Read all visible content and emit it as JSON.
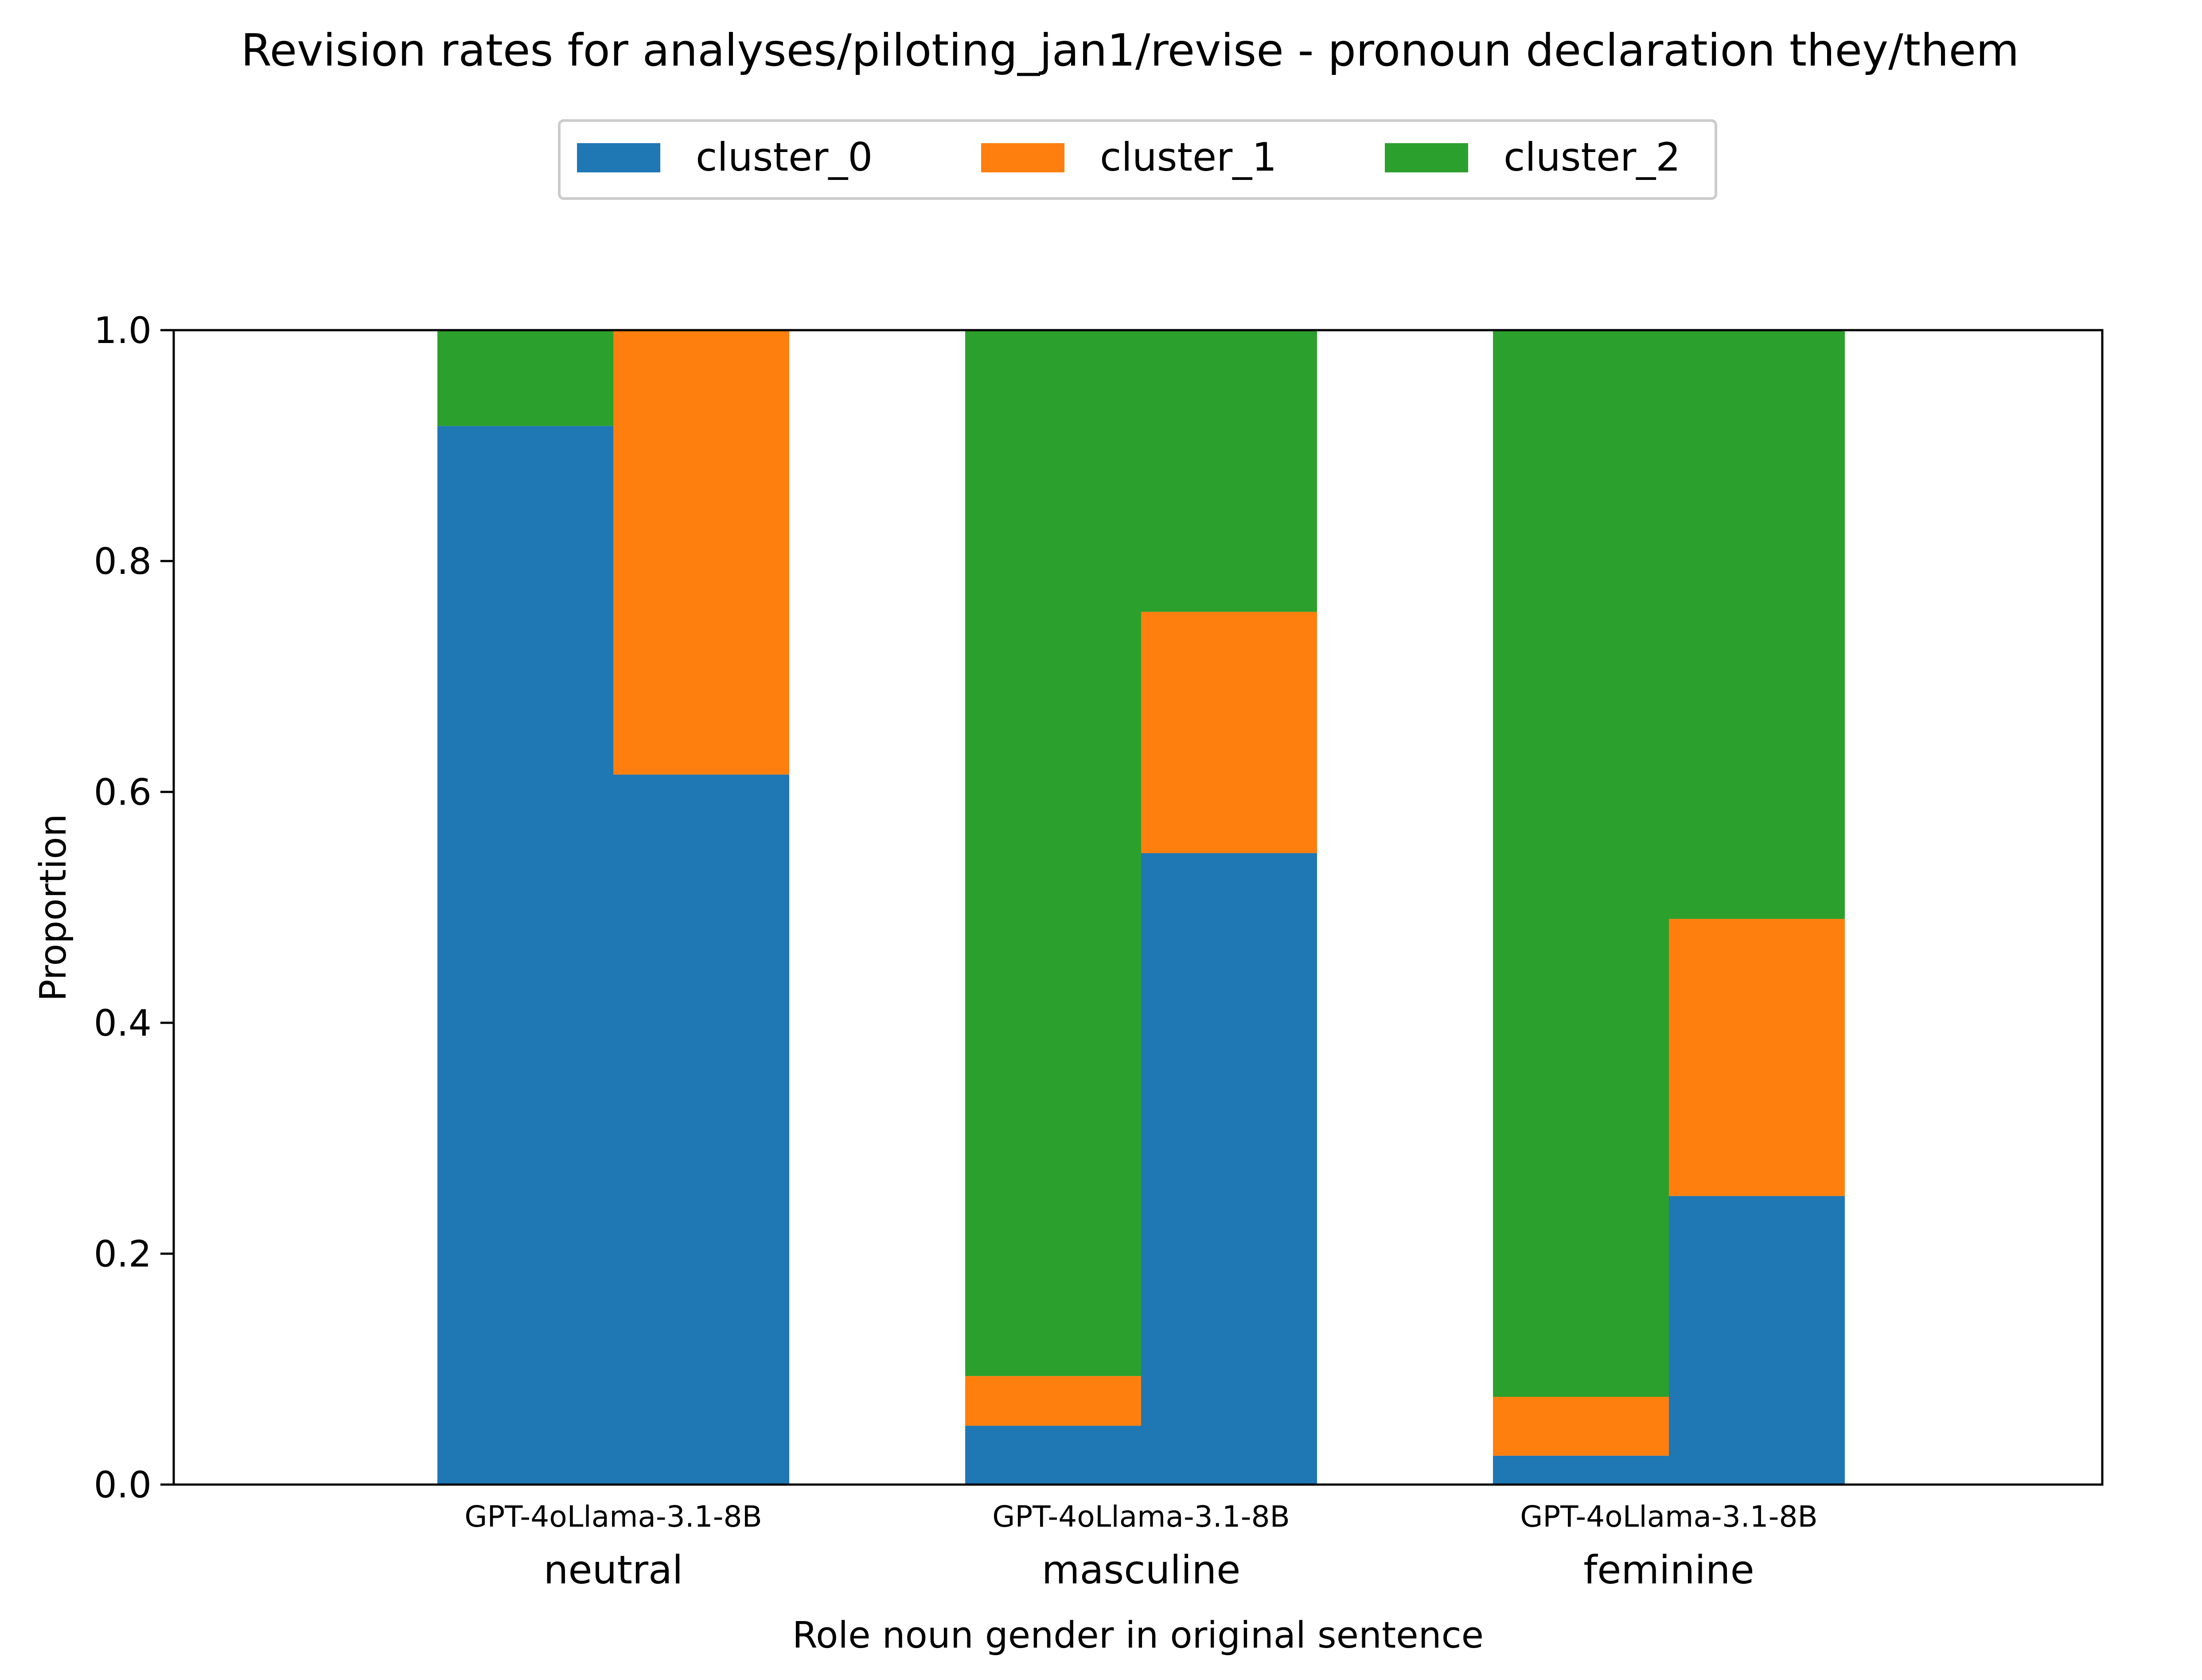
{
  "chart_data": {
    "type": "bar",
    "stacked": true,
    "title": "Revision rates for analyses/piloting_jan1/revise - pronoun declaration they/them",
    "xlabel": "Role noun gender in original sentence",
    "ylabel": "Proportion",
    "ylim": [
      0,
      1
    ],
    "yticks": [
      "0.0",
      "0.2",
      "0.4",
      "0.6",
      "0.8",
      "1.0"
    ],
    "grid": false,
    "legend_position": "top-center",
    "groups": [
      "neutral",
      "masculine",
      "feminine"
    ],
    "models": [
      "GPT-4o",
      "Llama-3.1-8B"
    ],
    "series": [
      {
        "name": "cluster_0",
        "color": "#1f77b4",
        "values": {
          "GPT-4o": [
            0.917,
            0.051,
            0.025
          ],
          "Llama-3.1-8B": [
            0.615,
            0.547,
            0.25
          ]
        }
      },
      {
        "name": "cluster_1",
        "color": "#ff7f0e",
        "values": {
          "GPT-4o": [
            0.0,
            0.043,
            0.051
          ],
          "Llama-3.1-8B": [
            0.385,
            0.209,
            0.24
          ]
        }
      },
      {
        "name": "cluster_2",
        "color": "#2ca02c",
        "values": {
          "GPT-4o": [
            0.083,
            0.906,
            0.924
          ],
          "Llama-3.1-8B": [
            0.0,
            0.244,
            0.51
          ]
        }
      }
    ]
  }
}
